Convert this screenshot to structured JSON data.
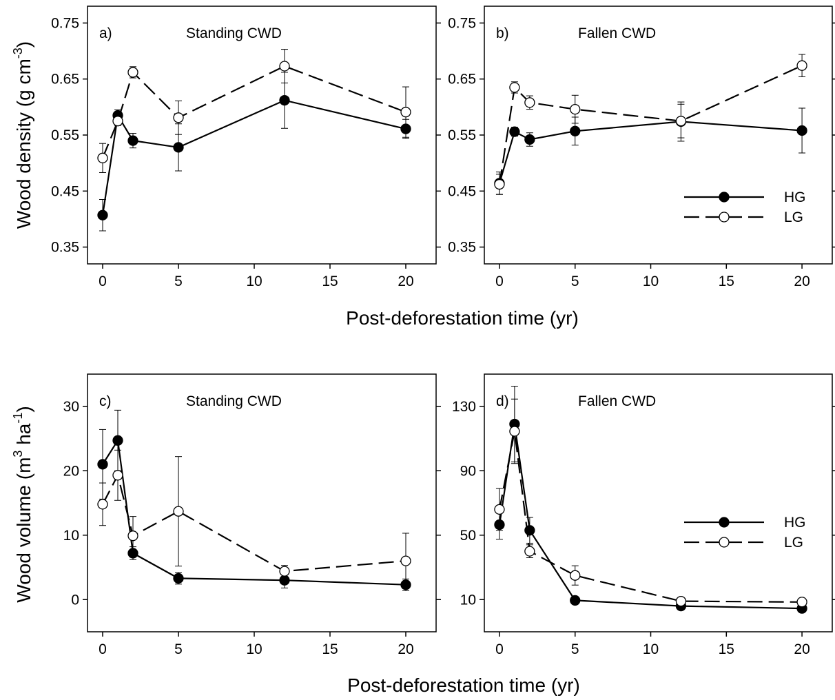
{
  "figure": {
    "row_xlabels": [
      "Post-deforestation time (yr)",
      "Post-deforestation time (yr)"
    ],
    "ylabels": [
      {
        "prefix": "Wood density (g cm",
        "sup": "-3",
        "suffix": ")"
      },
      {
        "prefix": "Wood volume (m",
        "sup": "3",
        "mid": " ha",
        "sup2": "-1",
        "suffix": ")"
      }
    ]
  },
  "chart_data": [
    {
      "type": "line",
      "letter": "a)",
      "title": "Standing CWD",
      "xlim": [
        -1,
        22
      ],
      "ylim": [
        0.32,
        0.78
      ],
      "xticks": [
        0,
        5,
        10,
        15,
        20
      ],
      "yticks": [
        0.35,
        0.45,
        0.55,
        0.65,
        0.75
      ],
      "ytick_labels": [
        "0.35",
        "0.45",
        "0.55",
        "0.65",
        "0.75"
      ],
      "legend": false,
      "series": [
        {
          "name": "HG",
          "style": "solid",
          "marker": "filled",
          "x": [
            0,
            1,
            2,
            5,
            12,
            20
          ],
          "y": [
            0.407,
            0.585,
            0.54,
            0.528,
            0.612,
            0.561
          ],
          "err": [
            0.028,
            0.01,
            0.013,
            0.042,
            0.05,
            0.017
          ]
        },
        {
          "name": "LG",
          "style": "dashed",
          "marker": "open",
          "x": [
            0,
            1,
            2,
            5,
            12,
            20
          ],
          "y": [
            0.509,
            0.575,
            0.662,
            0.581,
            0.673,
            0.591
          ],
          "err": [
            0.026,
            0.008,
            0.01,
            0.03,
            0.03,
            0.045
          ]
        }
      ]
    },
    {
      "type": "line",
      "letter": "b)",
      "title": "Fallen CWD",
      "xlim": [
        -1,
        22
      ],
      "ylim": [
        0.32,
        0.78
      ],
      "xticks": [
        0,
        5,
        10,
        15,
        20
      ],
      "yticks": [
        0.35,
        0.45,
        0.55,
        0.65,
        0.75
      ],
      "ytick_labels": [
        "0.35",
        "0.45",
        "0.55",
        "0.65",
        "0.75"
      ],
      "legend": true,
      "legend_position": "bottom-right",
      "series": [
        {
          "name": "HG",
          "style": "solid",
          "marker": "filled",
          "x": [
            0,
            1,
            2,
            5,
            12,
            20
          ],
          "y": [
            0.464,
            0.556,
            0.542,
            0.557,
            0.574,
            0.558
          ],
          "err": [
            0.02,
            0.008,
            0.012,
            0.025,
            0.035,
            0.04
          ]
        },
        {
          "name": "LG",
          "style": "dashed",
          "marker": "open",
          "x": [
            0,
            1,
            2,
            5,
            12,
            20
          ],
          "y": [
            0.462,
            0.635,
            0.608,
            0.596,
            0.575,
            0.674
          ],
          "err": [
            0.018,
            0.01,
            0.012,
            0.025,
            0.03,
            0.02
          ]
        }
      ]
    },
    {
      "type": "line",
      "letter": "c)",
      "title": "Standing CWD",
      "xlim": [
        -1,
        22
      ],
      "ylim": [
        -5,
        35
      ],
      "xticks": [
        0,
        5,
        10,
        15,
        20
      ],
      "yticks": [
        0,
        10,
        20,
        30
      ],
      "ytick_labels": [
        "0",
        "10",
        "20",
        "30"
      ],
      "legend": false,
      "series": [
        {
          "name": "HG",
          "style": "solid",
          "marker": "filled",
          "x": [
            0,
            1,
            2,
            5,
            12,
            20
          ],
          "y": [
            21.0,
            24.7,
            7.2,
            3.3,
            3.0,
            2.3
          ],
          "err": [
            5.4,
            4.7,
            1.0,
            0.9,
            1.2,
            0.9
          ]
        },
        {
          "name": "LG",
          "style": "dashed",
          "marker": "open",
          "x": [
            0,
            1,
            2,
            5,
            12,
            20
          ],
          "y": [
            14.8,
            19.3,
            9.9,
            13.7,
            4.4,
            6.0
          ],
          "err": [
            3.3,
            3.9,
            3.0,
            8.5,
            0.9,
            4.3
          ]
        }
      ]
    },
    {
      "type": "line",
      "letter": "d)",
      "title": "Fallen CWD",
      "xlim": [
        -1,
        22
      ],
      "ylim": [
        -10,
        150
      ],
      "xticks": [
        0,
        5,
        10,
        15,
        20
      ],
      "yticks": [
        10,
        50,
        90,
        130
      ],
      "ytick_labels": [
        "10",
        "50",
        "90",
        "130"
      ],
      "legend": true,
      "legend_position": "center-right",
      "series": [
        {
          "name": "HG",
          "style": "solid",
          "marker": "filled",
          "x": [
            0,
            1,
            2,
            5,
            12,
            20
          ],
          "y": [
            56.5,
            119.0,
            53.0,
            9.5,
            6.0,
            4.5
          ],
          "err": [
            9.0,
            23.5,
            8.0,
            1.0,
            1.0,
            1.0
          ]
        },
        {
          "name": "LG",
          "style": "dashed",
          "marker": "open",
          "x": [
            0,
            1,
            2,
            5,
            12,
            20
          ],
          "y": [
            66.0,
            114.5,
            40.0,
            25.0,
            9.0,
            8.5
          ],
          "err": [
            13.0,
            20.0,
            4.0,
            6.0,
            1.0,
            1.0
          ]
        }
      ]
    }
  ]
}
